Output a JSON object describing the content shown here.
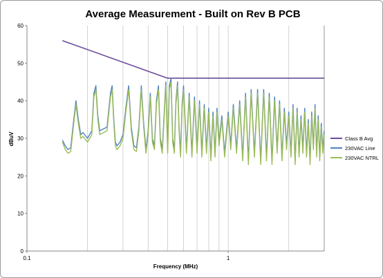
{
  "chart_data": {
    "type": "line",
    "title": "Average Measurement - Built on Rev B PCB",
    "xlabel": "Frequency (MHz)",
    "ylabel": "dBuV",
    "x_scale": "log",
    "xlim": [
      0.1,
      3.0
    ],
    "ylim": [
      0,
      60
    ],
    "x_ticks": [
      0.1,
      1
    ],
    "x_tick_labels": [
      "0.1",
      "1"
    ],
    "y_ticks": [
      0,
      10,
      20,
      30,
      40,
      50,
      60
    ],
    "y_tick_labels": [
      "0",
      "10",
      "20",
      "30",
      "40",
      "50",
      "60"
    ],
    "grid": "vertical minor log grid",
    "legend_position": "right",
    "series": [
      {
        "name": "Class B Avg",
        "color": "#6a4a9c",
        "x": [
          0.15,
          0.5,
          3.0
        ],
        "y": [
          56,
          46,
          46
        ]
      },
      {
        "name": "230VAC Line",
        "color": "#4f81bd",
        "x": [
          0.15,
          0.155,
          0.16,
          0.165,
          0.17,
          0.175,
          0.18,
          0.185,
          0.19,
          0.2,
          0.21,
          0.215,
          0.22,
          0.225,
          0.23,
          0.24,
          0.25,
          0.26,
          0.265,
          0.27,
          0.275,
          0.28,
          0.29,
          0.3,
          0.31,
          0.32,
          0.33,
          0.34,
          0.35,
          0.36,
          0.37,
          0.38,
          0.39,
          0.4,
          0.41,
          0.42,
          0.43,
          0.44,
          0.45,
          0.46,
          0.47,
          0.48,
          0.49,
          0.5,
          0.51,
          0.52,
          0.53,
          0.54,
          0.55,
          0.56,
          0.57,
          0.58,
          0.59,
          0.6,
          0.62,
          0.64,
          0.66,
          0.68,
          0.7,
          0.72,
          0.74,
          0.76,
          0.78,
          0.8,
          0.82,
          0.84,
          0.86,
          0.88,
          0.9,
          0.93,
          0.96,
          1.0,
          1.03,
          1.06,
          1.1,
          1.14,
          1.18,
          1.22,
          1.26,
          1.3,
          1.35,
          1.4,
          1.45,
          1.5,
          1.55,
          1.6,
          1.65,
          1.7,
          1.75,
          1.8,
          1.85,
          1.9,
          1.95,
          2.0,
          2.05,
          2.1,
          2.15,
          2.2,
          2.25,
          2.3,
          2.35,
          2.4,
          2.45,
          2.5,
          2.55,
          2.6,
          2.65,
          2.7,
          2.75,
          2.8,
          2.85,
          2.9,
          2.95,
          3.0
        ],
        "y": [
          29.5,
          28,
          27,
          27.5,
          34,
          40,
          35,
          31,
          31.5,
          30,
          32,
          42,
          44,
          36,
          32,
          32.5,
          33,
          42,
          44,
          35,
          29,
          28,
          29,
          31,
          38,
          44,
          33,
          28,
          27.5,
          33,
          44,
          34,
          27,
          32,
          42,
          30,
          28,
          40,
          44,
          30,
          27,
          36,
          45,
          27,
          44,
          46,
          30,
          27,
          40,
          45,
          33,
          26,
          39,
          44,
          27,
          42,
          26,
          41,
          27,
          40,
          26,
          39,
          27,
          38,
          25,
          37,
          26,
          38,
          29,
          36,
          26,
          37,
          28,
          39,
          27,
          40,
          25,
          42,
          24,
          43,
          26,
          43,
          24,
          43,
          25,
          42,
          24,
          41,
          27,
          40,
          25,
          38,
          28,
          37,
          26,
          39,
          24,
          38,
          26,
          36,
          27,
          38,
          26,
          35,
          24,
          37,
          28,
          39,
          26,
          36,
          25,
          34,
          27,
          32
        ]
      },
      {
        "name": "230VAC NTRL",
        "color": "#9bbb59",
        "x": [
          0.15,
          0.155,
          0.16,
          0.165,
          0.17,
          0.175,
          0.18,
          0.185,
          0.19,
          0.2,
          0.21,
          0.215,
          0.22,
          0.225,
          0.23,
          0.24,
          0.25,
          0.26,
          0.265,
          0.27,
          0.275,
          0.28,
          0.29,
          0.3,
          0.31,
          0.32,
          0.33,
          0.34,
          0.35,
          0.36,
          0.37,
          0.38,
          0.39,
          0.4,
          0.41,
          0.42,
          0.43,
          0.44,
          0.45,
          0.46,
          0.47,
          0.48,
          0.49,
          0.5,
          0.51,
          0.52,
          0.53,
          0.54,
          0.55,
          0.56,
          0.57,
          0.58,
          0.59,
          0.6,
          0.62,
          0.64,
          0.66,
          0.68,
          0.7,
          0.72,
          0.74,
          0.76,
          0.78,
          0.8,
          0.82,
          0.84,
          0.86,
          0.88,
          0.9,
          0.93,
          0.96,
          1.0,
          1.03,
          1.06,
          1.1,
          1.14,
          1.18,
          1.22,
          1.26,
          1.3,
          1.35,
          1.4,
          1.45,
          1.5,
          1.55,
          1.6,
          1.65,
          1.7,
          1.75,
          1.8,
          1.85,
          1.9,
          1.95,
          2.0,
          2.05,
          2.1,
          2.15,
          2.2,
          2.25,
          2.3,
          2.35,
          2.4,
          2.45,
          2.5,
          2.55,
          2.6,
          2.65,
          2.7,
          2.75,
          2.8,
          2.85,
          2.9,
          2.95,
          3.0
        ],
        "y": [
          29,
          27,
          26,
          26.5,
          33,
          39,
          34,
          30,
          30.5,
          29,
          31,
          41,
          43,
          35,
          31,
          31.5,
          32,
          41,
          43,
          34,
          28,
          27,
          28,
          30,
          37,
          43,
          32,
          27,
          26.5,
          32,
          43,
          33,
          26,
          31,
          41,
          29,
          27,
          39,
          43,
          29,
          26,
          35,
          44,
          26,
          43,
          45,
          29,
          26,
          39,
          44,
          32,
          25,
          38,
          43,
          26,
          41,
          25,
          40,
          26,
          39,
          25,
          38,
          26,
          37,
          24,
          36,
          25,
          37,
          28,
          35,
          25,
          36,
          27,
          38,
          26,
          39,
          24,
          41,
          23,
          42,
          25,
          42,
          23,
          42,
          24,
          41,
          23,
          40,
          26,
          39,
          24,
          37,
          27,
          36,
          25,
          38,
          23,
          37,
          25,
          35,
          26,
          37,
          25,
          34,
          23,
          36,
          27,
          38,
          25,
          35,
          24,
          33,
          26,
          31
        ]
      }
    ]
  }
}
